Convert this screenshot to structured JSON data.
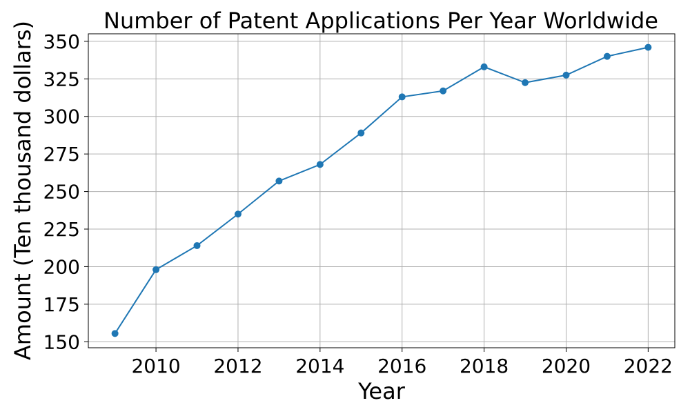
{
  "chart_data": {
    "type": "line",
    "title": "Number of Patent Applications Per Year Worldwide",
    "xlabel": "Year",
    "ylabel": "Amount (Ten thousand dollars)",
    "x": [
      2009,
      2010,
      2011,
      2012,
      2013,
      2014,
      2015,
      2016,
      2017,
      2018,
      2019,
      2020,
      2021,
      2022
    ],
    "series": [
      {
        "values": [
          155.5,
          198,
          214,
          235,
          257,
          268,
          289,
          313,
          317,
          333,
          322.5,
          327.5,
          340,
          346
        ]
      }
    ],
    "x_ticks": [
      "2010",
      "2012",
      "2014",
      "2016",
      "2018",
      "2020",
      "2022"
    ],
    "y_ticks": [
      "150",
      "175",
      "200",
      "225",
      "250",
      "275",
      "300",
      "325",
      "350"
    ],
    "xlim": [
      2008.35,
      2022.65
    ],
    "ylim": [
      146,
      355
    ],
    "grid": true,
    "marker": "circle",
    "line_color": "#1f77b4"
  }
}
